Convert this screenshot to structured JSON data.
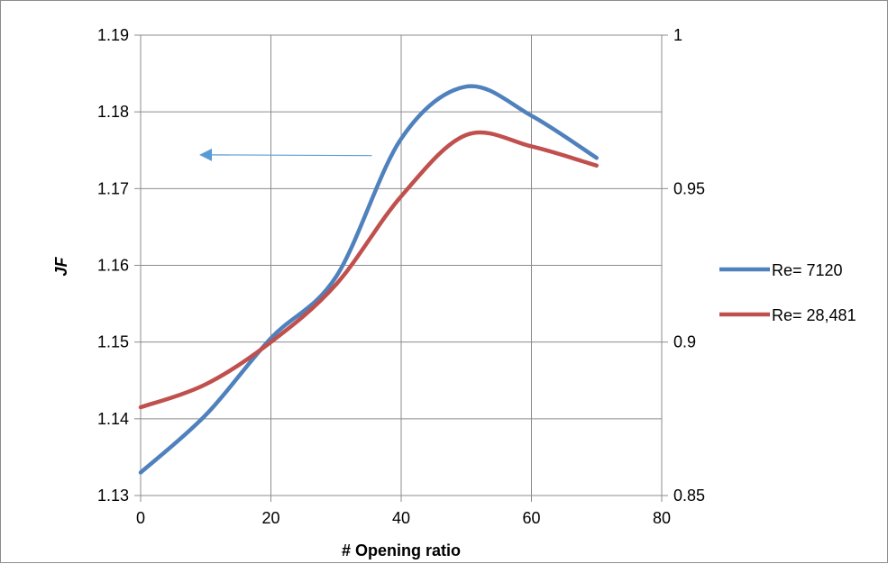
{
  "chart_data": {
    "type": "line",
    "xlabel": "# Opening ratio",
    "ylabel": "JF",
    "xlim": [
      0,
      80
    ],
    "ylim": [
      1.13,
      1.19
    ],
    "y2lim": [
      0.85,
      1
    ],
    "x_ticks": [
      "0",
      "20",
      "40",
      "60",
      "80"
    ],
    "y_ticks": [
      "1.13",
      "1.14",
      "1.15",
      "1.16",
      "1.17",
      "1.18",
      "1.19"
    ],
    "y2_ticks": [
      "0.85",
      "0.9",
      "0.95",
      "1"
    ],
    "grid": true,
    "legend_position": "right",
    "series": [
      {
        "name": "Re= 7120",
        "color": "#4f81bd",
        "axis": "left",
        "points": [
          [
            0,
            1.133
          ],
          [
            10,
            1.1405
          ],
          [
            20,
            1.1505
          ],
          [
            30,
            1.1585
          ],
          [
            40,
            1.1765
          ],
          [
            50,
            1.1833
          ],
          [
            60,
            1.1795
          ],
          [
            70,
            1.174
          ]
        ]
      },
      {
        "name": "Re= 28,481",
        "color": "#c0504d",
        "axis": "left",
        "points": [
          [
            0,
            1.1415
          ],
          [
            10,
            1.1445
          ],
          [
            20,
            1.15
          ],
          [
            30,
            1.1575
          ],
          [
            40,
            1.169
          ],
          [
            50,
            1.177
          ],
          [
            60,
            1.1755
          ],
          [
            70,
            1.173
          ]
        ]
      }
    ],
    "annotation": {
      "type": "arrow",
      "color": "#5b9bd5",
      "from": [
        35.5,
        1.1743
      ],
      "to": [
        9,
        1.1744
      ]
    }
  }
}
